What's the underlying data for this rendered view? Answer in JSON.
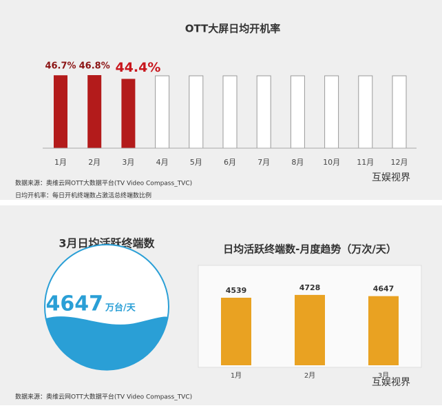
{
  "chart_data": [
    {
      "type": "bar",
      "title": "OTT大屏日均开机率",
      "categories": [
        "1月",
        "2月",
        "3月",
        "4月",
        "5月",
        "6月",
        "7月",
        "8月",
        "10月",
        "11月",
        "12月"
      ],
      "values": [
        46.7,
        46.8,
        44.4,
        null,
        null,
        null,
        null,
        null,
        null,
        null,
        null
      ],
      "value_labels": [
        "46.7%",
        "46.8%",
        "44.4%",
        null,
        null,
        null,
        null,
        null,
        null,
        null,
        null
      ],
      "color": "#b31b1b",
      "notes": [
        "数据来源：奥维云网OTT大数据平台(TV  Video Compass_TVC)",
        "日均开机率：每日开机终端数占激活总终端数比例"
      ]
    },
    {
      "type": "bar",
      "title": "日均活跃终端数-月度趋势（万次/天）",
      "categories": [
        "1月",
        "2月",
        "3月"
      ],
      "values": [
        4539,
        4728,
        4647
      ],
      "color": "#e9a222",
      "notes": [
        "数据来源：奥维云网OTT大数据平台(TV  Video Compass_TVC)"
      ]
    }
  ],
  "gauge": {
    "title": "3月日均活跃终端数",
    "value": 4647,
    "unit": "万台/天"
  },
  "brand": "互娱视界"
}
